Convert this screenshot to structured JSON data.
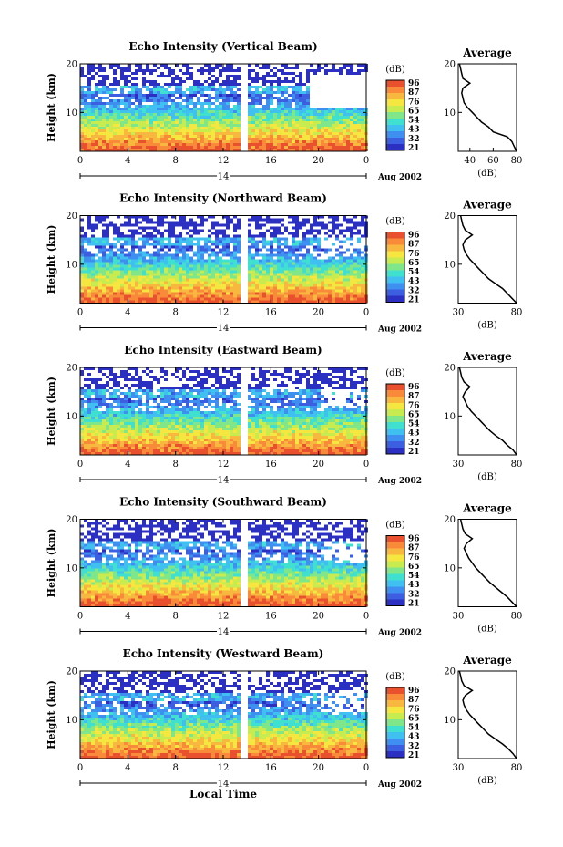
{
  "figure": {
    "xlabel": "Local Time",
    "day_label": "14",
    "date_label": "Aug 2002",
    "colorbar_label": "(dB)",
    "colorbar_ticks": [
      "96",
      "87",
      "76",
      "65",
      "54",
      "43",
      "32",
      "21"
    ],
    "colormap": [
      "#2b2fc2",
      "#3b5fe0",
      "#3f8ff0",
      "#3fc0f0",
      "#40e0d0",
      "#7fe68a",
      "#c8ec50",
      "#f5e640",
      "#f8b840",
      "#f88a3a",
      "#e8502e"
    ]
  },
  "panels": [
    {
      "title": "Echo Intensity (Vertical Beam)",
      "ylabel": "Height (km)",
      "avg_title": "Average",
      "avg_xlabel": "(dB)",
      "avg_xticks": [
        "40",
        "60",
        "80"
      ],
      "yticks": [
        "10",
        "20"
      ],
      "xticks": [
        "0",
        "4",
        "8",
        "12",
        "16",
        "20",
        "0"
      ]
    },
    {
      "title": "Echo Intensity (Northward Beam)",
      "ylabel": "Height (km)",
      "avg_title": "Average",
      "avg_xlabel": "(dB)",
      "avg_xticks": [
        "30",
        "80"
      ],
      "yticks": [
        "10",
        "20"
      ],
      "xticks": [
        "0",
        "4",
        "8",
        "12",
        "16",
        "20",
        "0"
      ]
    },
    {
      "title": "Echo Intensity (Eastward Beam)",
      "ylabel": "Height (km)",
      "avg_title": "Average",
      "avg_xlabel": "(dB)",
      "avg_xticks": [
        "30",
        "80"
      ],
      "yticks": [
        "10",
        "20"
      ],
      "xticks": [
        "0",
        "4",
        "8",
        "12",
        "16",
        "20",
        "0"
      ]
    },
    {
      "title": "Echo Intensity (Southward Beam)",
      "ylabel": "Height (km)",
      "avg_title": "Average",
      "avg_xlabel": "(dB)",
      "avg_xticks": [
        "30",
        "80"
      ],
      "yticks": [
        "10",
        "20"
      ],
      "xticks": [
        "0",
        "4",
        "8",
        "12",
        "16",
        "20",
        "0"
      ]
    },
    {
      "title": "Echo Intensity (Westward Beam)",
      "ylabel": "Height (km)",
      "avg_title": "Average",
      "avg_xlabel": "(dB)",
      "avg_xticks": [
        "30",
        "80"
      ],
      "yticks": [
        "10",
        "20"
      ],
      "xticks": [
        "0",
        "4",
        "8",
        "12",
        "16",
        "20",
        "0"
      ]
    }
  ],
  "chart_data": [
    {
      "type": "heatmap",
      "title": "Echo Intensity (Vertical Beam)",
      "xlabel": "",
      "ylabel": "Height (km)",
      "xlim": [
        0,
        24
      ],
      "ylim": [
        2,
        20
      ],
      "data_gap_hours": [
        13.2,
        13.8
      ],
      "colorbar": {
        "label": "(dB)",
        "range": [
          21,
          96
        ]
      },
      "average_profile": {
        "xlabel": "(dB)",
        "xlim": [
          30,
          80
        ],
        "height_km": [
          2,
          3,
          4,
          5,
          6,
          7,
          8,
          9,
          10,
          11,
          12,
          13,
          14,
          15,
          16,
          17,
          18,
          19,
          20
        ],
        "db": [
          80,
          78,
          76,
          72,
          60,
          56,
          50,
          46,
          42,
          38,
          35,
          34,
          33,
          34,
          40,
          34,
          33,
          32,
          31
        ]
      }
    },
    {
      "type": "heatmap",
      "title": "Echo Intensity (Northward Beam)",
      "xlabel": "",
      "ylabel": "Height (km)",
      "xlim": [
        0,
        24
      ],
      "ylim": [
        2,
        20
      ],
      "data_gap_hours": [
        13.2,
        13.8
      ],
      "colorbar": {
        "label": "(dB)",
        "range": [
          21,
          96
        ]
      },
      "average_profile": {
        "xlabel": "(dB)",
        "xlim": [
          30,
          80
        ],
        "height_km": [
          2,
          3,
          4,
          5,
          6,
          7,
          8,
          9,
          10,
          11,
          12,
          13,
          14,
          15,
          16,
          17,
          18,
          19,
          20
        ],
        "db": [
          80,
          76,
          72,
          68,
          62,
          56,
          52,
          48,
          44,
          40,
          37,
          35,
          34,
          36,
          42,
          36,
          34,
          33,
          32
        ]
      }
    },
    {
      "type": "heatmap",
      "title": "Echo Intensity (Eastward Beam)",
      "xlabel": "",
      "ylabel": "Height (km)",
      "xlim": [
        0,
        24
      ],
      "ylim": [
        2,
        20
      ],
      "data_gap_hours": [
        13.2,
        13.8
      ],
      "colorbar": {
        "label": "(dB)",
        "range": [
          21,
          96
        ]
      },
      "average_profile": {
        "xlabel": "(dB)",
        "xlim": [
          30,
          80
        ],
        "height_km": [
          2,
          3,
          4,
          5,
          6,
          7,
          8,
          9,
          10,
          11,
          12,
          13,
          14,
          15,
          16,
          17,
          18,
          19,
          20
        ],
        "db": [
          80,
          77,
          72,
          68,
          62,
          57,
          53,
          49,
          45,
          41,
          38,
          36,
          34,
          36,
          40,
          35,
          33,
          32,
          31
        ]
      }
    },
    {
      "type": "heatmap",
      "title": "Echo Intensity (Southward Beam)",
      "xlabel": "",
      "ylabel": "Height (km)",
      "xlim": [
        0,
        24
      ],
      "ylim": [
        2,
        20
      ],
      "data_gap_hours": [
        13.2,
        13.8
      ],
      "colorbar": {
        "label": "(dB)",
        "range": [
          21,
          96
        ]
      },
      "average_profile": {
        "xlabel": "(dB)",
        "xlim": [
          30,
          80
        ],
        "height_km": [
          2,
          3,
          4,
          5,
          6,
          7,
          8,
          9,
          10,
          11,
          12,
          13,
          14,
          15,
          16,
          17,
          18,
          19,
          20
        ],
        "db": [
          80,
          76,
          72,
          67,
          62,
          57,
          53,
          49,
          45,
          42,
          39,
          37,
          35,
          37,
          42,
          36,
          34,
          33,
          32
        ]
      }
    },
    {
      "type": "heatmap",
      "title": "Echo Intensity (Westward Beam)",
      "xlabel": "Local Time",
      "ylabel": "Height (km)",
      "xlim": [
        0,
        24
      ],
      "ylim": [
        2,
        20
      ],
      "data_gap_hours": [
        13.2,
        13.8
      ],
      "colorbar": {
        "label": "(dB)",
        "range": [
          21,
          96
        ]
      },
      "average_profile": {
        "xlabel": "(dB)",
        "xlim": [
          30,
          80
        ],
        "height_km": [
          2,
          3,
          4,
          5,
          6,
          7,
          8,
          9,
          10,
          11,
          12,
          13,
          14,
          15,
          16,
          17,
          18,
          19,
          20
        ],
        "db": [
          80,
          77,
          73,
          68,
          62,
          56,
          52,
          48,
          44,
          40,
          37,
          35,
          34,
          36,
          42,
          35,
          33,
          32,
          31
        ]
      }
    }
  ]
}
